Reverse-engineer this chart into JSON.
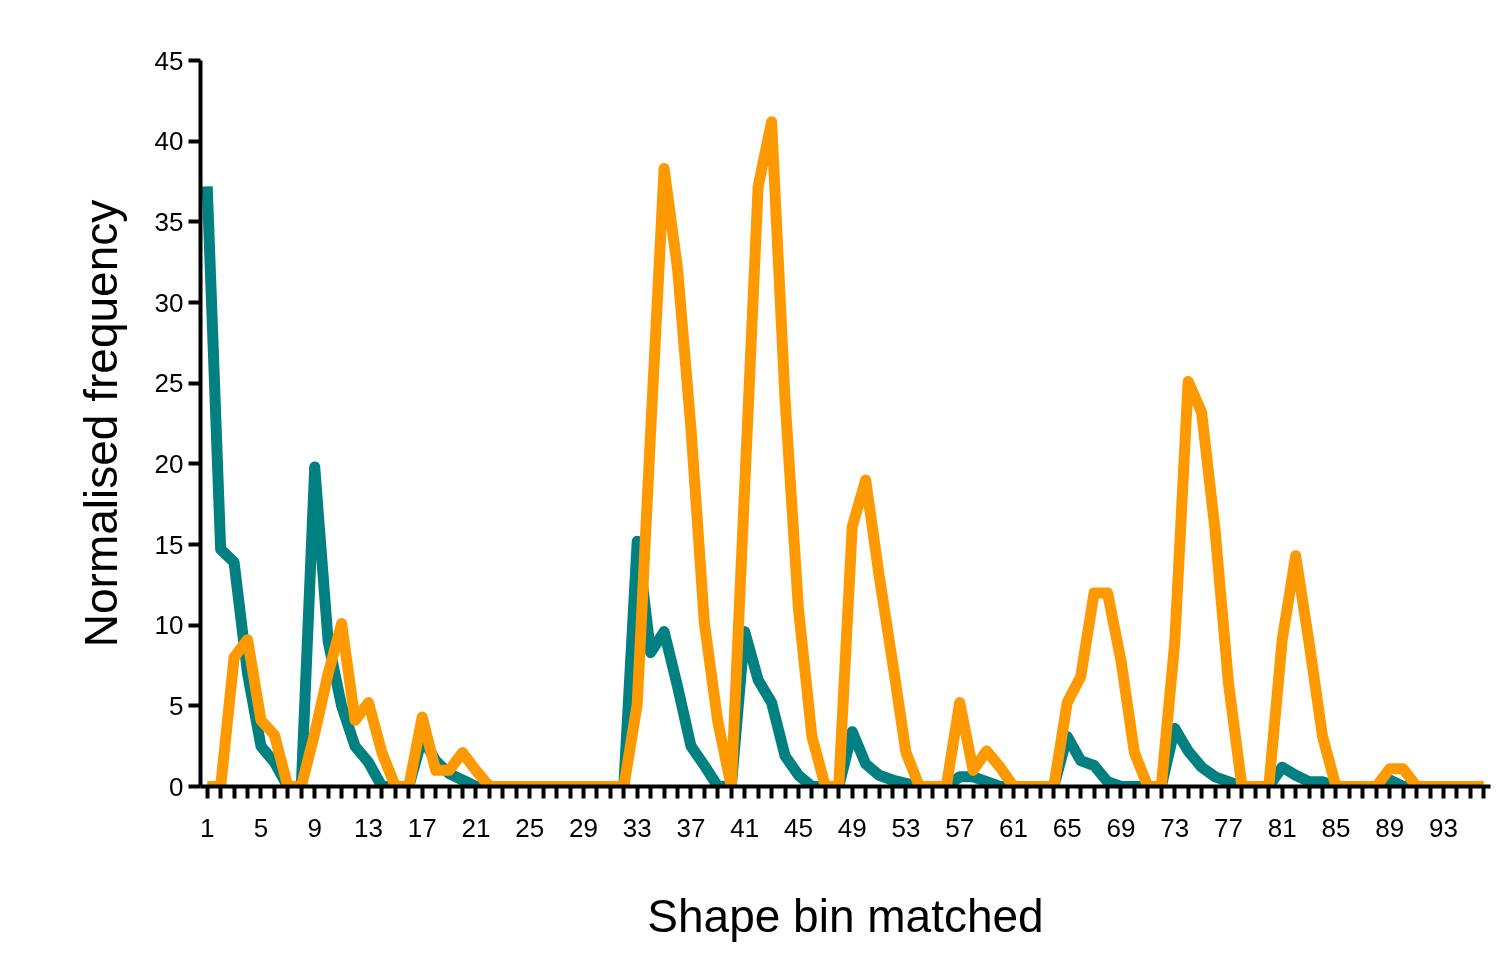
{
  "chart_data": {
    "type": "line",
    "xlabel": "Shape bin matched",
    "ylabel": "Normalised frequency",
    "categories": [
      "1",
      null,
      null,
      null,
      "5",
      null,
      null,
      null,
      "9",
      null,
      null,
      null,
      "13",
      null,
      null,
      null,
      "17",
      null,
      null,
      null,
      "21",
      null,
      null,
      null,
      "25",
      null,
      null,
      null,
      "29",
      null,
      null,
      null,
      "33",
      null,
      null,
      null,
      "37",
      null,
      null,
      null,
      "41",
      null,
      null,
      null,
      "45",
      null,
      null,
      null,
      "49",
      null,
      null,
      null,
      "53",
      null,
      null,
      null,
      "57",
      null,
      null,
      null,
      "61",
      null,
      null,
      null,
      "65",
      null,
      null,
      null,
      "69",
      null,
      null,
      null,
      "73",
      null,
      null,
      null,
      "77",
      null,
      null,
      null,
      "81",
      null,
      null,
      null,
      "85",
      null,
      null,
      null,
      "89",
      null,
      null,
      null,
      "93",
      null,
      null,
      null
    ],
    "series": [
      {
        "color": "#008080",
        "values": [
          37.2,
          14.7,
          13.9,
          7,
          2.5,
          1.5,
          0,
          0,
          19.8,
          9,
          5,
          2.5,
          1.5,
          0,
          0,
          0,
          3,
          1.6,
          0.8,
          0.4,
          0,
          0,
          0,
          0,
          0,
          0,
          0,
          0,
          0,
          0,
          0,
          0,
          15.2,
          8.3,
          9.6,
          6.2,
          2.5,
          1.3,
          0,
          0,
          9.6,
          6.6,
          5.2,
          1.9,
          0.7,
          0,
          0,
          0,
          3.4,
          1.4,
          0.7,
          0.4,
          0.2,
          0,
          0,
          0,
          0.6,
          0.6,
          0.3,
          0,
          0,
          0,
          0,
          0,
          3.1,
          1.6,
          1.3,
          0.3,
          0,
          0,
          0,
          0,
          3.6,
          2.2,
          1.2,
          0.6,
          0.3,
          0,
          0,
          0,
          1.2,
          0.7,
          0.3,
          0.3,
          0,
          0,
          0,
          0,
          0.4,
          0,
          0,
          0,
          null,
          null,
          null,
          null
        ]
      },
      {
        "color": "#ff9900",
        "values": [
          0,
          0,
          8,
          9.1,
          4.1,
          3.2,
          0,
          0,
          3.3,
          7,
          10.1,
          4.1,
          5.2,
          2.1,
          0,
          0,
          4.3,
          1,
          1,
          2.1,
          1,
          0,
          0,
          0,
          0,
          0,
          0,
          0,
          0,
          0,
          0,
          0,
          5.1,
          22,
          38.3,
          32.1,
          22.2,
          10.1,
          4,
          0,
          18.6,
          37.2,
          41.2,
          24,
          11,
          3.1,
          0,
          0,
          16.1,
          19,
          13.1,
          7.7,
          2.1,
          0,
          0,
          0,
          5.2,
          1,
          2.2,
          1.2,
          0,
          0,
          0,
          0,
          5.2,
          6.8,
          12,
          12,
          7.8,
          2.1,
          0,
          0,
          8.9,
          25.1,
          23.2,
          15.9,
          6.4,
          0,
          0,
          0,
          9.1,
          14.3,
          8.9,
          3.1,
          0,
          0,
          0,
          0,
          1.1,
          1.1,
          0,
          0,
          0,
          0,
          0,
          0
        ]
      }
    ],
    "ylim": [
      0,
      45
    ],
    "yticks": [
      0,
      5,
      10,
      15,
      20,
      25,
      30,
      35,
      40,
      45
    ],
    "grid": false
  }
}
